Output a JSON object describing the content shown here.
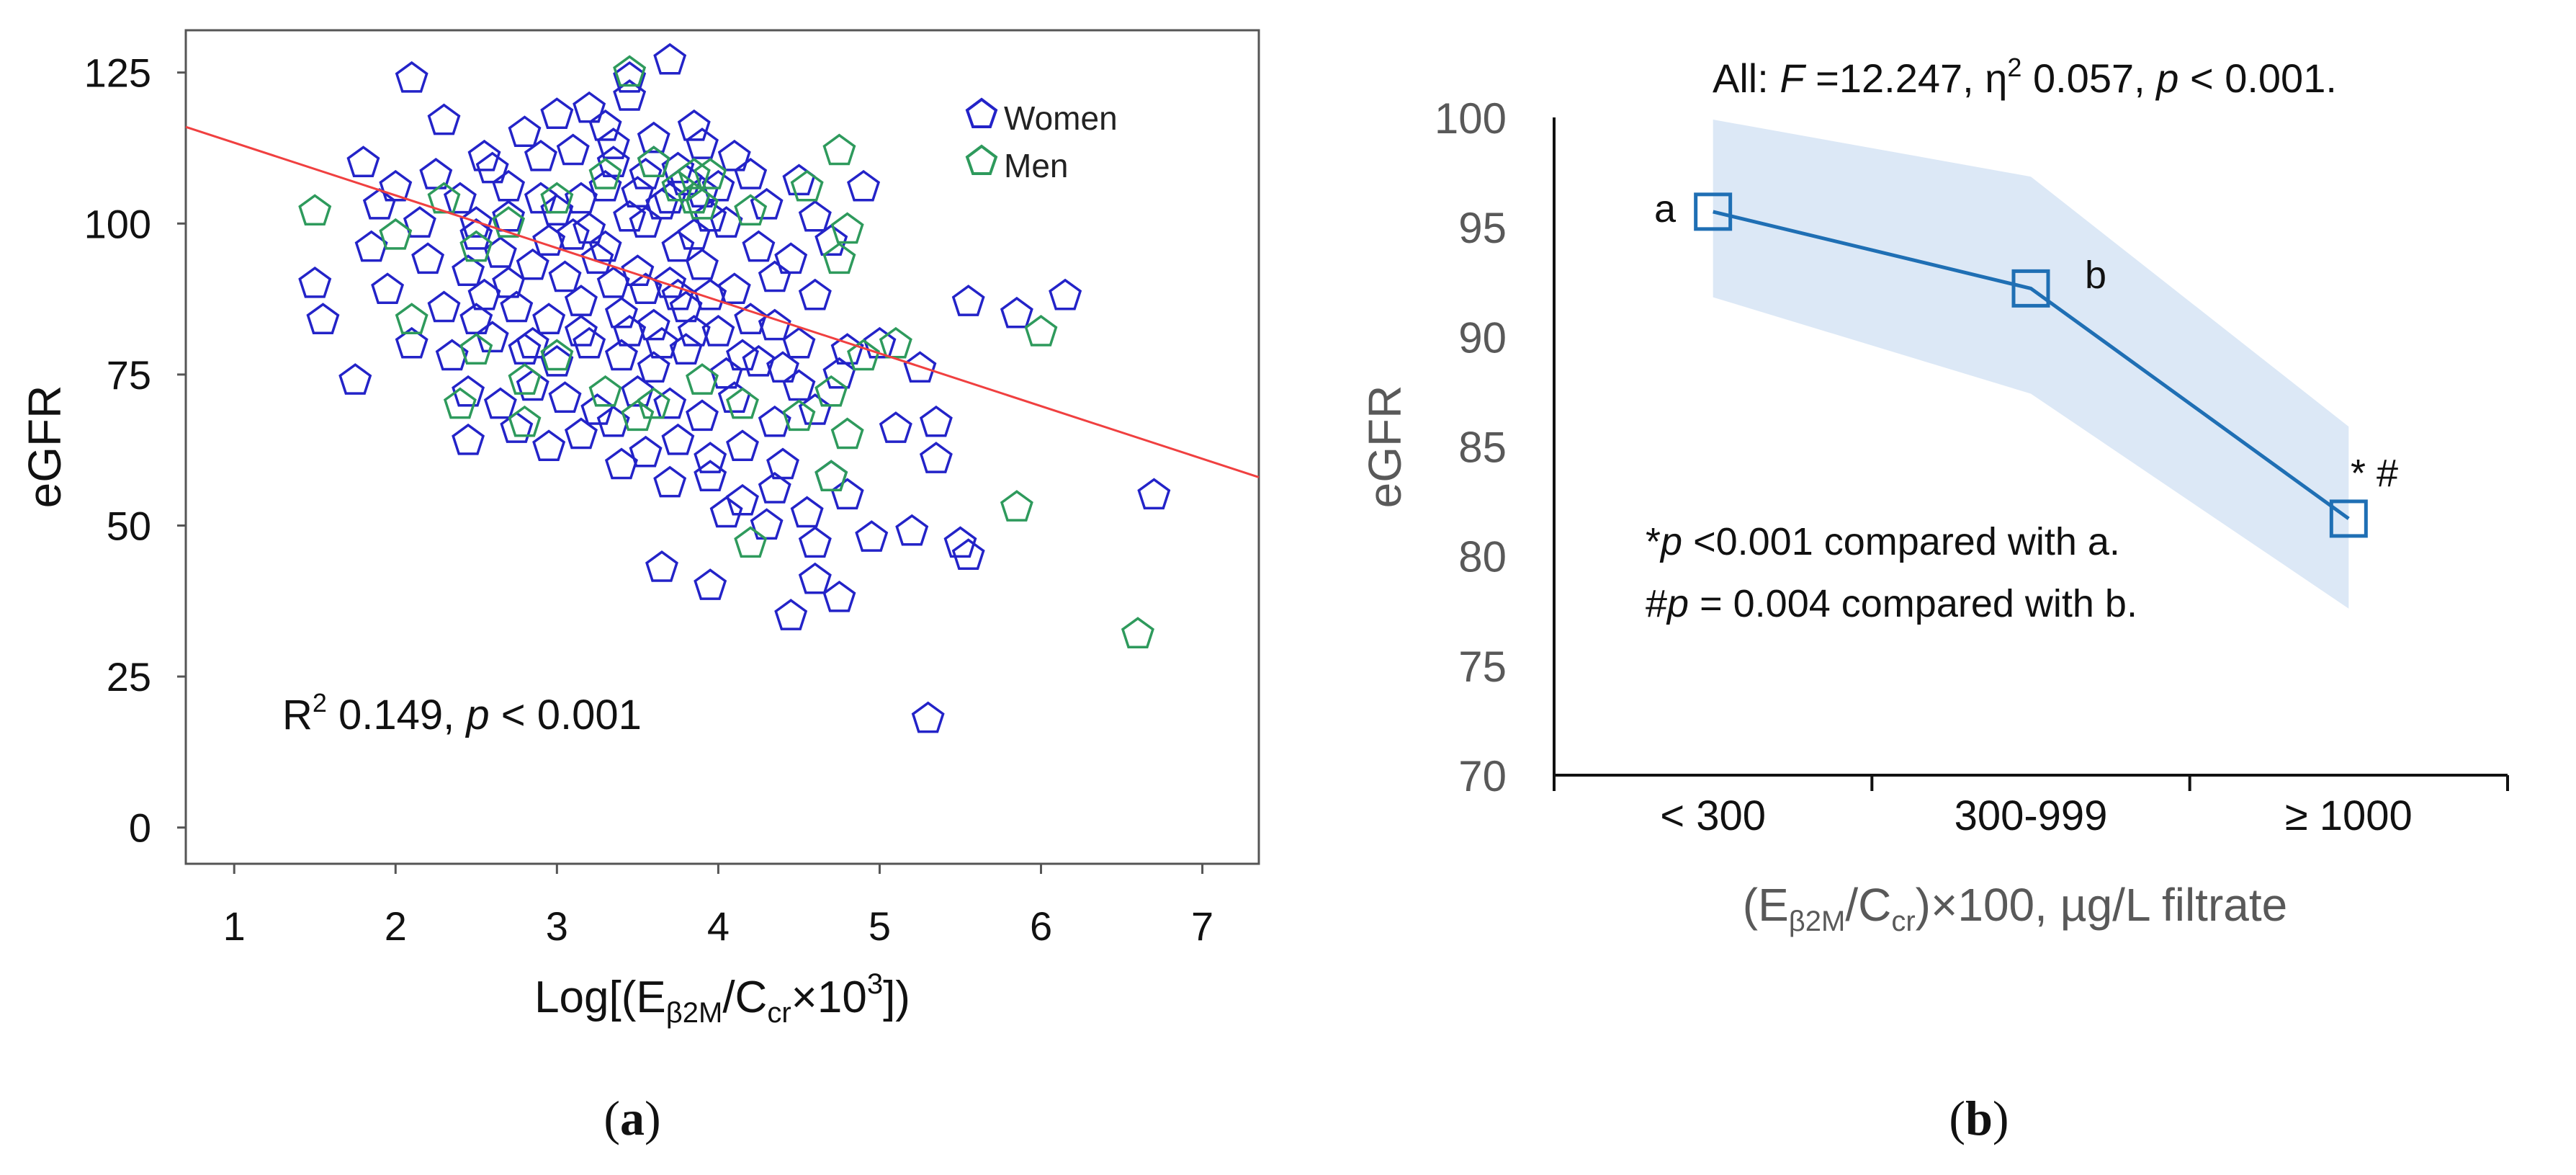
{
  "panels": {
    "a": {
      "label_open": "(",
      "label_letter": "a",
      "label_close": ")"
    },
    "b": {
      "label_open": "(",
      "label_letter": "b",
      "label_close": ")"
    }
  },
  "chart_data": [
    {
      "type": "scatter",
      "title": "",
      "xlabel": {
        "prefix": "Log[(E",
        "sub1": "β2M",
        "mid": "/C",
        "sub2": "cr",
        "times": "×10",
        "sup": "3",
        "suffix": "])"
      },
      "ylabel": "eGFR",
      "xlim": [
        0.7,
        7.35
      ],
      "ylim": [
        -6,
        132
      ],
      "xticks": [
        1,
        2,
        3,
        4,
        5,
        6,
        7
      ],
      "yticks": [
        0,
        25,
        50,
        75,
        100,
        125
      ],
      "marker": "pentagon",
      "legend": {
        "position": "top-right",
        "entries": [
          {
            "name": "Women",
            "color": "#2323C8"
          },
          {
            "name": "Men",
            "color": "#2E9A5C"
          }
        ]
      },
      "series": [
        {
          "name": "Women",
          "color": "#2323C8",
          "points": [
            [
              2.1,
              124
            ],
            [
              3.7,
              127
            ],
            [
              3.45,
              124
            ],
            [
              3.45,
              121
            ],
            [
              3.2,
              119
            ],
            [
              2.3,
              117
            ],
            [
              2.8,
              115
            ],
            [
              3.0,
              118
            ],
            [
              3.3,
              116
            ],
            [
              3.6,
              114
            ],
            [
              3.9,
              113
            ],
            [
              4.2,
              108
            ],
            [
              4.5,
              107
            ],
            [
              1.8,
              110
            ],
            [
              2.0,
              106
            ],
            [
              2.4,
              104
            ],
            [
              2.6,
              109
            ],
            [
              2.9,
              111
            ],
            [
              3.1,
              112
            ],
            [
              3.35,
              110
            ],
            [
              3.55,
              108
            ],
            [
              3.75,
              109
            ],
            [
              4.0,
              106
            ],
            [
              4.3,
              103
            ],
            [
              4.6,
              101
            ],
            [
              4.9,
              106
            ],
            [
              1.9,
              103
            ],
            [
              2.15,
              100
            ],
            [
              2.5,
              98
            ],
            [
              2.7,
              101
            ],
            [
              3.0,
              102
            ],
            [
              3.2,
              99
            ],
            [
              3.45,
              101
            ],
            [
              3.65,
              103
            ],
            [
              3.85,
              98
            ],
            [
              4.05,
              100
            ],
            [
              4.25,
              96
            ],
            [
              4.45,
              94
            ],
            [
              4.7,
              97
            ],
            [
              1.85,
              96
            ],
            [
              2.2,
              94
            ],
            [
              2.45,
              92
            ],
            [
              2.65,
              95
            ],
            [
              2.85,
              93
            ],
            [
              3.05,
              91
            ],
            [
              3.25,
              94
            ],
            [
              3.5,
              92
            ],
            [
              3.7,
              90
            ],
            [
              3.9,
              93
            ],
            [
              4.1,
              89
            ],
            [
              4.35,
              91
            ],
            [
              4.6,
              88
            ],
            [
              1.5,
              90
            ],
            [
              1.95,
              89
            ],
            [
              2.3,
              86
            ],
            [
              2.55,
              88
            ],
            [
              2.75,
              86
            ],
            [
              2.95,
              84
            ],
            [
              3.15,
              87
            ],
            [
              3.4,
              85
            ],
            [
              3.6,
              83
            ],
            [
              3.8,
              86
            ],
            [
              4.0,
              82
            ],
            [
              4.2,
              84
            ],
            [
              4.5,
              80
            ],
            [
              4.8,
              79
            ],
            [
              5.0,
              80
            ],
            [
              5.55,
              87
            ],
            [
              5.85,
              85
            ],
            [
              6.15,
              88
            ],
            [
              1.55,
              84
            ],
            [
              1.75,
              74
            ],
            [
              2.1,
              80
            ],
            [
              2.35,
              78
            ],
            [
              2.6,
              81
            ],
            [
              2.8,
              79
            ],
            [
              3.0,
              77
            ],
            [
              3.2,
              80
            ],
            [
              3.4,
              78
            ],
            [
              3.6,
              76
            ],
            [
              3.8,
              79
            ],
            [
              4.05,
              75
            ],
            [
              4.25,
              77
            ],
            [
              4.5,
              73
            ],
            [
              4.75,
              75
            ],
            [
              5.25,
              76
            ],
            [
              2.45,
              72
            ],
            [
              2.65,
              70
            ],
            [
              2.85,
              73
            ],
            [
              3.05,
              71
            ],
            [
              3.25,
              69
            ],
            [
              3.5,
              72
            ],
            [
              3.7,
              70
            ],
            [
              3.9,
              68
            ],
            [
              4.1,
              71
            ],
            [
              4.35,
              67
            ],
            [
              4.6,
              69
            ],
            [
              5.35,
              67
            ],
            [
              2.45,
              64
            ],
            [
              2.75,
              66
            ],
            [
              2.95,
              63
            ],
            [
              3.15,
              65
            ],
            [
              3.35,
              67
            ],
            [
              3.55,
              62
            ],
            [
              3.75,
              64
            ],
            [
              3.95,
              61
            ],
            [
              4.15,
              63
            ],
            [
              4.4,
              60
            ],
            [
              4.7,
              58
            ],
            [
              5.1,
              66
            ],
            [
              5.35,
              61
            ],
            [
              3.4,
              60
            ],
            [
              3.7,
              57
            ],
            [
              3.95,
              58
            ],
            [
              4.15,
              54
            ],
            [
              4.35,
              56
            ],
            [
              4.55,
              52
            ],
            [
              4.8,
              55
            ],
            [
              4.05,
              52
            ],
            [
              4.3,
              50
            ],
            [
              4.6,
              47
            ],
            [
              4.95,
              48
            ],
            [
              5.2,
              49
            ],
            [
              5.5,
              47
            ],
            [
              5.55,
              45
            ],
            [
              3.65,
              43
            ],
            [
              3.95,
              40
            ],
            [
              4.6,
              41
            ],
            [
              4.45,
              35
            ],
            [
              4.75,
              38
            ],
            [
              5.3,
              18
            ],
            [
              6.7,
              55
            ],
            [
              3.3,
              106
            ],
            [
              3.5,
              105
            ],
            [
              3.7,
              104
            ],
            [
              3.8,
              107
            ],
            [
              3.9,
              105
            ],
            [
              3.6,
              110
            ],
            [
              3.35,
              113
            ],
            [
              3.15,
              104
            ],
            [
              3.55,
              100
            ],
            [
              3.75,
              96
            ],
            [
              3.95,
              101
            ],
            [
              3.3,
              96
            ],
            [
              3.1,
              98
            ],
            [
              2.9,
              104
            ],
            [
              2.7,
              106
            ],
            [
              2.55,
              111
            ],
            [
              3.85,
              116
            ],
            [
              4.1,
              111
            ],
            [
              3.75,
              88
            ],
            [
              3.95,
              88
            ],
            [
              3.55,
              89
            ],
            [
              3.35,
              90
            ],
            [
              3.85,
              82
            ],
            [
              3.65,
              80
            ],
            [
              4.15,
              78
            ],
            [
              2.95,
              97
            ],
            [
              2.5,
              100
            ],
            [
              2.25,
              108
            ],
            [
              2.7,
              90
            ],
            [
              3.15,
              82
            ],
            [
              3.45,
              82
            ],
            [
              4.35,
              83
            ],
            [
              4.4,
              76
            ],
            [
              2.85,
              80
            ],
            [
              2.5,
              84
            ]
          ]
        },
        {
          "name": "Men",
          "color": "#2E9A5C",
          "points": [
            [
              1.5,
              102
            ],
            [
              2.0,
              98
            ],
            [
              2.3,
              104
            ],
            [
              2.5,
              96
            ],
            [
              2.7,
              100
            ],
            [
              3.0,
              104
            ],
            [
              3.3,
              108
            ],
            [
              3.45,
              125
            ],
            [
              3.6,
              110
            ],
            [
              3.75,
              106
            ],
            [
              3.85,
              104
            ],
            [
              3.95,
              108
            ],
            [
              4.2,
              102
            ],
            [
              4.55,
              106
            ],
            [
              4.75,
              112
            ],
            [
              4.8,
              99
            ],
            [
              4.75,
              94
            ],
            [
              2.1,
              84
            ],
            [
              2.5,
              79
            ],
            [
              2.8,
              74
            ],
            [
              3.0,
              78
            ],
            [
              3.3,
              72
            ],
            [
              3.6,
              70
            ],
            [
              3.9,
              74
            ],
            [
              4.15,
              70
            ],
            [
              4.5,
              68
            ],
            [
              4.7,
              72
            ],
            [
              4.9,
              78
            ],
            [
              5.1,
              80
            ],
            [
              6.0,
              82
            ],
            [
              4.7,
              58
            ],
            [
              4.8,
              65
            ],
            [
              4.2,
              47
            ],
            [
              5.85,
              53
            ],
            [
              6.6,
              32
            ],
            [
              2.4,
              70
            ],
            [
              2.8,
              67
            ],
            [
              3.5,
              68
            ],
            [
              3.85,
              108
            ],
            [
              3.9,
              103
            ]
          ]
        }
      ],
      "trendline": {
        "color": "#F04040",
        "x": [
          0.7,
          7.35
        ],
        "y": [
          116,
          58
        ]
      },
      "annotation": {
        "pre": "R",
        "sup": "2",
        "mid": " 0.149, ",
        "p": "p",
        "post": " < 0.001"
      }
    },
    {
      "type": "line",
      "title": {
        "pre": "All: ",
        "f": "F",
        "mid1": " =12.247, η",
        "sup": "2",
        "mid2": " 0.057, ",
        "p": "p",
        "post": " < 0.001."
      },
      "categories": [
        "< 300",
        "300-999",
        "≥ 1000"
      ],
      "xlabel": {
        "pre": "(E",
        "sub1": "β2M",
        "mid": "/C",
        "sub2": "cr",
        "post": ")×100, µg/L filtrate"
      },
      "ylabel": "eGFR",
      "ylim": [
        70,
        100
      ],
      "yticks": [
        70,
        75,
        80,
        85,
        90,
        95,
        100
      ],
      "series": [
        {
          "name": "",
          "values": [
            95.7,
            92.2,
            81.7
          ],
          "ci_lower": [
            91.8,
            87.4,
            77.6
          ],
          "ci_upper": [
            99.9,
            97.3,
            85.9
          ],
          "color": "#1F6FB4"
        }
      ],
      "point_labels": [
        "a",
        "b",
        "* #"
      ],
      "notes": [
        {
          "sym": "*",
          "p": "p",
          "text": " <0.001 compared with a."
        },
        {
          "sym": "#",
          "p": "p",
          "text": " = 0.004  compared with b."
        }
      ],
      "colors": {
        "line": "#1F6FB4",
        "band": "#DCE8F6",
        "text": "#595959"
      }
    }
  ]
}
